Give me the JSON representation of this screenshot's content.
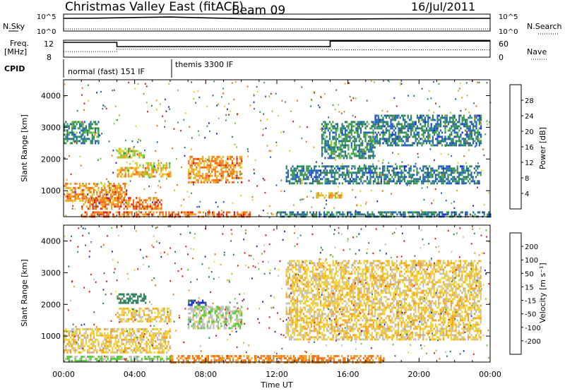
{
  "header": {
    "title": "Christmas Valley East (fitACF)",
    "beam": "Beam 09",
    "date": "16/Jul/2011"
  },
  "noise_panel": {
    "left_label": "N.Sky",
    "right_label": "N.Search",
    "left_ticks": [
      "10^5",
      "10^0"
    ],
    "right_ticks": [
      "10^5",
      "10^0"
    ]
  },
  "freq_panel": {
    "left_label_1": "Freq.",
    "left_label_2": "[MHz]",
    "left_ticks": [
      "12",
      "8"
    ],
    "right_label": "Nave",
    "right_ticks": [
      "60",
      "0"
    ]
  },
  "cpid_panel": {
    "label": "CPID",
    "segments": [
      {
        "name": "normal (fast) 151 IF",
        "start_hour": 0,
        "end_hour": 6.0
      },
      {
        "name": "themis 3300 IF",
        "start_hour": 6.0,
        "end_hour": 24
      }
    ]
  },
  "power_panel": {
    "ylabel": "Slant Range [km]",
    "cb_label": "Power [dB]",
    "cb_ticks": [
      "28",
      "24",
      "20",
      "16",
      "12",
      "8",
      "4"
    ]
  },
  "velocity_panel": {
    "ylabel": "Slant Range [km]",
    "cb_label": "Velocity [m s⁻¹]",
    "cb_ticks": [
      "200",
      "100",
      "50",
      "15",
      "-15",
      "-50",
      "-100",
      "-200"
    ]
  },
  "xaxis": {
    "label": "Time UT",
    "ticks": [
      "00:00",
      "04:00",
      "08:00",
      "12:00",
      "16:00",
      "20:00",
      "00:00"
    ]
  },
  "colors": {
    "power_scale": [
      "#1a2ad8",
      "#1f5fc8",
      "#2d7f5a",
      "#3aa24a",
      "#7fcf3a",
      "#e0d030",
      "#f7a020",
      "#f07018",
      "#e02010"
    ],
    "velocity_scale": [
      "#1a2ad8",
      "#2d7f5a",
      "#5cc83a",
      "#bfbfbf",
      "#f0d030",
      "#f7a020",
      "#f07018",
      "#e02010"
    ]
  },
  "chart_data": [
    {
      "type": "line",
      "title": "N.Sky / N.Search",
      "x": [
        0,
        2,
        4,
        6,
        8,
        10,
        12,
        14,
        16,
        18,
        20,
        22,
        24
      ],
      "series": [
        {
          "name": "N.Sky",
          "values": [
            10000,
            12000,
            20000,
            30000,
            15000,
            8000,
            6000,
            5000,
            6000,
            7000,
            8000,
            9000,
            10000
          ]
        },
        {
          "name": "N.Search",
          "values": [
            1,
            1,
            1,
            1,
            1,
            1,
            1,
            1,
            1,
            1,
            1,
            1,
            1
          ]
        }
      ],
      "ylim": [
        1,
        100000
      ],
      "log_scale": true
    },
    {
      "type": "line",
      "title": "Freq / Nave",
      "series": [
        {
          "name": "Freq.",
          "x": [
            0,
            3,
            3,
            15,
            15,
            24
          ],
          "values": [
            11.5,
            11.5,
            10.5,
            10.5,
            11.8,
            11.8
          ]
        },
        {
          "name": "Nave",
          "x": [
            0,
            3,
            3,
            15,
            15,
            24
          ],
          "values": [
            20,
            20,
            28,
            28,
            26,
            26
          ]
        }
      ],
      "ylim_left": [
        8,
        12
      ],
      "ylim_right": [
        0,
        60
      ]
    },
    {
      "type": "heatmap",
      "title": "Power [dB]",
      "xlabel": "Time UT",
      "ylabel": "Slant Range [km]",
      "xlim": [
        0,
        24
      ],
      "ylim": [
        180,
        4500
      ],
      "yticks": [
        1000,
        2000,
        3000,
        4000
      ],
      "clim": [
        0,
        32
      ],
      "blobs": [
        {
          "t0": 0.0,
          "t1": 3.5,
          "r0": 700,
          "r1": 1250,
          "value": 24
        },
        {
          "t0": 1.0,
          "t1": 5.5,
          "r0": 450,
          "r1": 800,
          "value": 26
        },
        {
          "t0": 3.0,
          "t1": 6.0,
          "r0": 1450,
          "r1": 1750,
          "value": 22
        },
        {
          "t0": 4.0,
          "t1": 6.0,
          "r0": 1700,
          "r1": 1900,
          "value": 18
        },
        {
          "t0": 3.0,
          "t1": 4.5,
          "r0": 2050,
          "r1": 2350,
          "value": 18
        },
        {
          "t0": 7.0,
          "t1": 10.0,
          "r0": 1250,
          "r1": 2100,
          "value": 24
        },
        {
          "t0": 1.0,
          "t1": 10.5,
          "r0": 180,
          "r1": 350,
          "value": 26
        },
        {
          "t0": 14.2,
          "t1": 15.6,
          "r0": 750,
          "r1": 950,
          "value": 22
        },
        {
          "t0": 0.0,
          "t1": 2.0,
          "r0": 2500,
          "r1": 3200,
          "value": 10
        },
        {
          "t0": 12.0,
          "t1": 24.0,
          "r0": 180,
          "r1": 350,
          "value": 8
        },
        {
          "t0": 12.5,
          "t1": 23.5,
          "r0": 1200,
          "r1": 1800,
          "value": 8
        },
        {
          "t0": 14.5,
          "t1": 17.5,
          "r0": 2000,
          "r1": 3200,
          "value": 10
        },
        {
          "t0": 17.5,
          "t1": 23.5,
          "r0": 2400,
          "r1": 3400,
          "value": 8
        }
      ]
    },
    {
      "type": "heatmap",
      "title": "Velocity [m s-1]",
      "xlabel": "Time UT",
      "ylabel": "Slant Range [km]",
      "xlim": [
        0,
        24
      ],
      "ylim": [
        180,
        4500
      ],
      "yticks": [
        1000,
        2000,
        3000,
        4000
      ],
      "clim": [
        -250,
        250
      ],
      "blobs": [
        {
          "t0": 0.0,
          "t1": 6.0,
          "r0": 500,
          "r1": 1250,
          "value": 0
        },
        {
          "t0": 3.0,
          "t1": 6.0,
          "r0": 1450,
          "r1": 1900,
          "value": 0
        },
        {
          "t0": 3.0,
          "t1": 4.6,
          "r0": 2050,
          "r1": 2350,
          "value": 150
        },
        {
          "t0": 7.0,
          "t1": 8.0,
          "r0": 1950,
          "r1": 2150,
          "value": 200
        },
        {
          "t0": 7.0,
          "t1": 10.0,
          "r0": 1250,
          "r1": 1950,
          "value": 40
        },
        {
          "t0": 6.0,
          "t1": 18.0,
          "r0": 180,
          "r1": 400,
          "value": -60
        },
        {
          "t0": 0.0,
          "t1": 6.0,
          "r0": 180,
          "r1": 380,
          "value": 60
        },
        {
          "t0": 12.5,
          "t1": 23.5,
          "r0": 900,
          "r1": 3400,
          "value": 0
        }
      ]
    }
  ]
}
